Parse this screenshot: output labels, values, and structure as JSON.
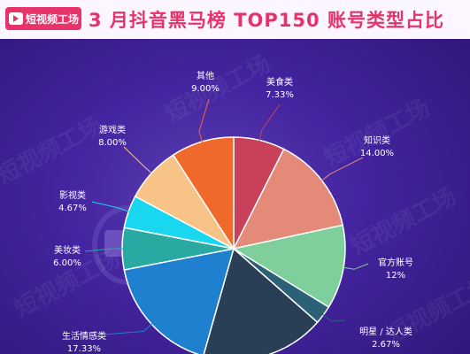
{
  "header": {
    "logo_text": "短视频工场",
    "title": "3 月抖音黑马榜 TOP150 账号类型占比"
  },
  "watermark": "短视频工场",
  "colors": {
    "header_bg": "#fbf6ff",
    "accent": "#e8326a"
  },
  "chart_data": {
    "type": "pie",
    "title": "3 月抖音黑马榜 TOP150 账号类型占比",
    "slices": [
      {
        "label": "美食类",
        "value_text": "7.33%",
        "value": 7.33,
        "color": "#c8405a"
      },
      {
        "label": "知识类",
        "value_text": "14.00%",
        "value": 14.0,
        "color": "#e58a78"
      },
      {
        "label": "官方账号",
        "value_text": "12%",
        "value": 12.0,
        "color": "#7ecf9c"
      },
      {
        "label": "明星 / 达人类",
        "value_text": "2.67%",
        "value": 2.67,
        "color": "#2c6076"
      },
      {
        "label": "",
        "value_text": "",
        "value": 17.67,
        "color": "#2a3f55"
      },
      {
        "label": "生活情感类",
        "value_text": "17.33%",
        "value": 17.33,
        "color": "#1f80d0"
      },
      {
        "label": "美妆类",
        "value_text": "6.00%",
        "value": 6.0,
        "color": "#2aa9a3"
      },
      {
        "label": "影视类",
        "value_text": "4.67%",
        "value": 4.67,
        "color": "#19d7ee"
      },
      {
        "label": "游戏类",
        "value_text": "8.00%",
        "value": 8.0,
        "color": "#f8c387"
      },
      {
        "label": "其他",
        "value_text": "9.00%",
        "value": 9.0,
        "color": "#ef6a2a"
      }
    ]
  }
}
